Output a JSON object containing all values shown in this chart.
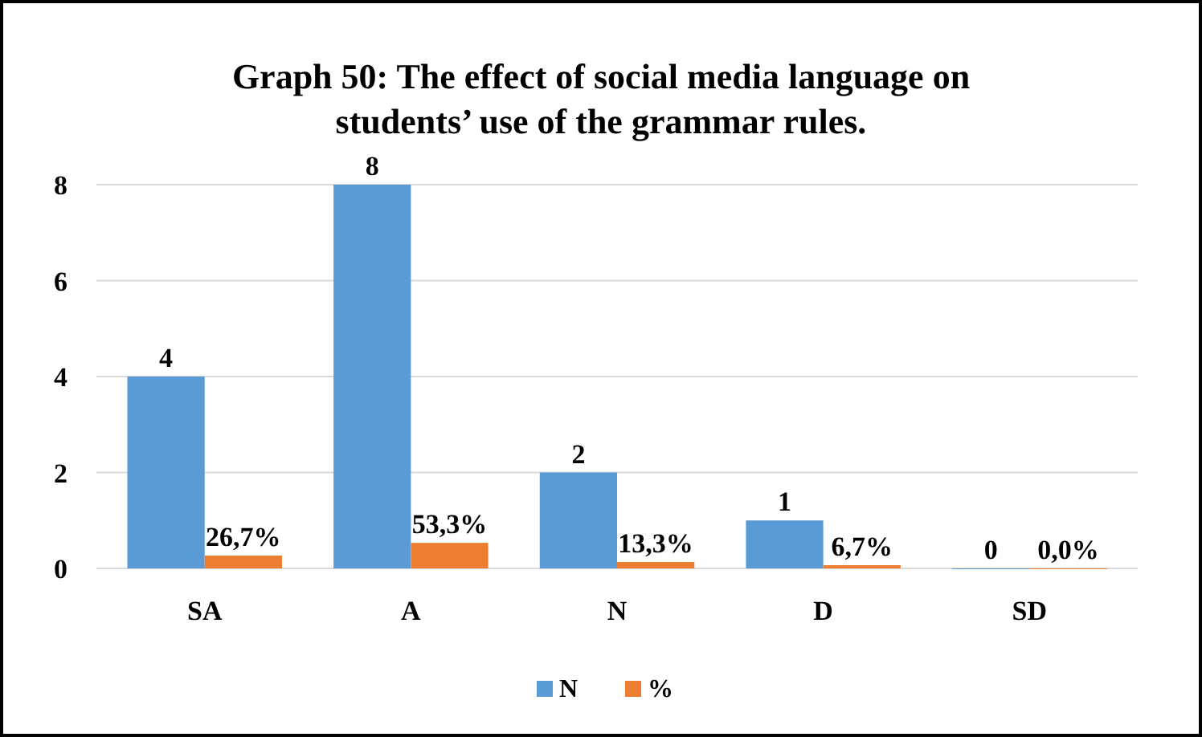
{
  "chart_data": {
    "type": "bar",
    "title": "Graph 50: The effect of social media language on students’ use of the grammar rules.",
    "categories": [
      "SA",
      "A",
      "N",
      "D",
      "SD"
    ],
    "series": [
      {
        "name": "N",
        "color": "#5b9bd5",
        "values": [
          4,
          8,
          2,
          1,
          0
        ],
        "value_labels": [
          "4",
          "8",
          "2",
          "1",
          "0"
        ]
      },
      {
        "name": "%",
        "color": "#ed7d31",
        "values": [
          0.267,
          0.533,
          0.133,
          0.067,
          0
        ],
        "value_labels": [
          "26,7%",
          "53,3%",
          "13,3%",
          "6,7%",
          "0,0%"
        ]
      }
    ],
    "ylim": [
      0,
      8
    ],
    "yticks": [
      0,
      2,
      4,
      6,
      8
    ],
    "grid": "y",
    "legend": "bottom"
  }
}
